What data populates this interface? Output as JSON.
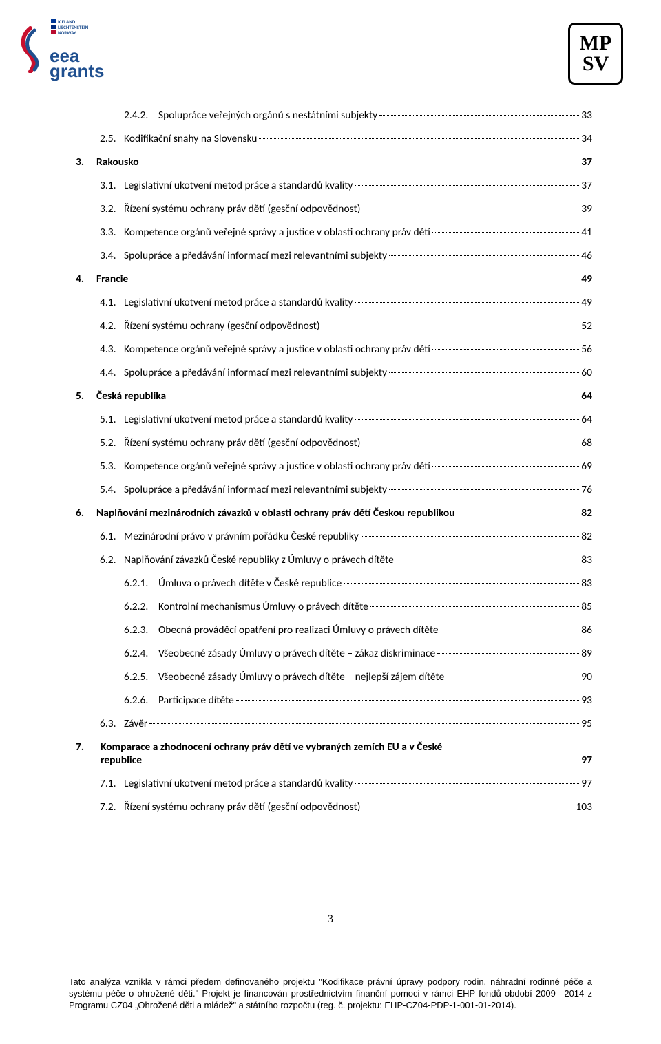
{
  "logos": {
    "left_flags": "ICELAND\nLIECHTENSTEIN\nNORWAY",
    "left_text_1": "eea",
    "left_text_2": "grants",
    "right_line1": "MP",
    "right_line2": "SV"
  },
  "toc": [
    {
      "level": "level-3",
      "num": "2.4.2.",
      "title": "Spolupráce veřejných orgánů s nestátními subjekty",
      "page": "33"
    },
    {
      "level": "level-2",
      "num": "2.5.",
      "title": "Kodifikační snahy na Slovensku",
      "page": "34"
    },
    {
      "level": "level-1",
      "num": "3.",
      "title": "Rakousko",
      "page": "37"
    },
    {
      "level": "level-2",
      "num": "3.1.",
      "title": "Legislativní ukotvení metod práce a standardů kvality",
      "page": "37"
    },
    {
      "level": "level-2",
      "num": "3.2.",
      "title": "Řízení systému ochrany práv dětí (gesční odpovědnost)",
      "page": "39"
    },
    {
      "level": "level-2",
      "num": "3.3.",
      "title": "Kompetence orgánů veřejné správy a justice v oblasti ochrany práv dětí",
      "page": "41"
    },
    {
      "level": "level-2",
      "num": "3.4.",
      "title": "Spolupráce a předávání informací mezi relevantními subjekty",
      "page": "46"
    },
    {
      "level": "level-1",
      "num": "4.",
      "title": "Francie",
      "page": "49"
    },
    {
      "level": "level-2",
      "num": "4.1.",
      "title": "Legislativní ukotvení metod práce a standardů kvality",
      "page": "49"
    },
    {
      "level": "level-2",
      "num": "4.2.",
      "title": "Řízení systému ochrany (gesční odpovědnost)",
      "page": "52"
    },
    {
      "level": "level-2",
      "num": "4.3.",
      "title": "Kompetence orgánů veřejné správy a justice v oblasti ochrany práv dětí",
      "page": "56"
    },
    {
      "level": "level-2",
      "num": "4.4.",
      "title": "Spolupráce a předávání informací mezi relevantními subjekty",
      "page": "60"
    },
    {
      "level": "level-1",
      "num": "5.",
      "title": "Česká republika",
      "page": "64"
    },
    {
      "level": "level-2",
      "num": "5.1.",
      "title": "Legislativní ukotvení metod práce a standardů kvality",
      "page": "64"
    },
    {
      "level": "level-2",
      "num": "5.2.",
      "title": "Řízení systému ochrany práv dětí (gesční odpovědnost)",
      "page": "68"
    },
    {
      "level": "level-2",
      "num": "5.3.",
      "title": "Kompetence orgánů veřejné správy a justice v oblasti ochrany práv dětí",
      "page": "69"
    },
    {
      "level": "level-2",
      "num": "5.4.",
      "title": "Spolupráce a předávání informací mezi relevantními subjekty",
      "page": "76"
    },
    {
      "level": "level-1",
      "num": "6.",
      "title": "Naplňování mezinárodních závazků v oblasti ochrany práv dětí Českou republikou",
      "page": "82"
    },
    {
      "level": "level-2",
      "num": "6.1.",
      "title": "Mezinárodní právo v právním pořádku České republiky",
      "page": "82"
    },
    {
      "level": "level-2",
      "num": "6.2.",
      "title": "Naplňování závazků České republiky z Úmluvy o právech dítěte",
      "page": "83"
    },
    {
      "level": "level-3",
      "num": "6.2.1.",
      "title": "Úmluva o právech dítěte v České republice",
      "page": "83"
    },
    {
      "level": "level-3",
      "num": "6.2.2.",
      "title": "Kontrolní mechanismus Úmluvy o právech dítěte",
      "page": "85"
    },
    {
      "level": "level-3",
      "num": "6.2.3.",
      "title": "Obecná prováděcí opatření pro realizaci Úmluvy o právech dítěte",
      "page": "86"
    },
    {
      "level": "level-3",
      "num": "6.2.4.",
      "title": "Všeobecné zásady Úmluvy o právech dítěte – zákaz diskriminace",
      "page": "89"
    },
    {
      "level": "level-3",
      "num": "6.2.5.",
      "title": "Všeobecné zásady Úmluvy o právech dítěte – nejlepší zájem dítěte",
      "page": "90"
    },
    {
      "level": "level-3",
      "num": "6.2.6.",
      "title": "Participace dítěte",
      "page": "93"
    },
    {
      "level": "level-2",
      "num": "6.3.",
      "title": "Závěr",
      "page": "95"
    },
    {
      "level": "level-1",
      "num": "7.",
      "title": "Komparace a zhodnocení ochrany práv dětí ve vybraných zemích EU a v České republice",
      "page": "97",
      "multiline": true,
      "line1": "Komparace a zhodnocení ochrany práv dětí ve vybraných zemích EU a v České",
      "line2": "republice"
    },
    {
      "level": "level-2",
      "num": "7.1.",
      "title": "Legislativní ukotvení metod práce a standardů kvality",
      "page": "97"
    },
    {
      "level": "level-2",
      "num": "7.2.",
      "title": "Řízení systému ochrany práv dětí (gesční odpovědnost)",
      "page": "103"
    }
  ],
  "page_number": "3",
  "footer": "Tato analýza vznikla v rámci předem definovaného projektu \"Kodifikace právní úpravy podpory rodin, náhradní rodinné péče a  systému péče o ohrožené děti.\" Projekt je financován prostřednictvím finanční pomoci v rámci EHP fondů  období 2009 –2014 z Programu CZ04 „Ohrožené děti a mládež\" a státního rozpočtu (reg. č. projektu: EHP-CZ04-PDP-1-001-01-2014)."
}
